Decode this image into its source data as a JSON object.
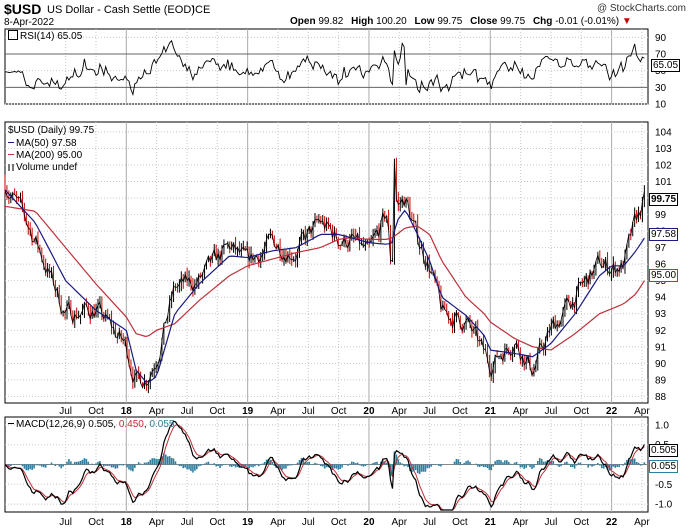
{
  "header": {
    "symbol": "$USD",
    "name": "US Dollar - Cash Settle (EOD)",
    "exchange": "ICE",
    "copyright": "@ StockCharts.com",
    "date": "8-Apr-2022",
    "open_label": "Open",
    "open": "99.82",
    "high_label": "High",
    "high": "100.20",
    "low_label": "Low",
    "low": "99.75",
    "close_label": "Close",
    "close": "99.75",
    "chg_label": "Chg",
    "chg": "-0.01 (-0.01%)",
    "chg_arrow": "▼"
  },
  "rsi_panel": {
    "title": "RSI(14) 65.05",
    "current": "65.05"
  },
  "price_panel": {
    "title": "$USD (Daily) 99.75",
    "ma50_label": "MA(50) 97.58",
    "ma200_label": "MA(200) 95.00",
    "volume_label": "Volume undef",
    "last_price": "99.75",
    "ma50_value": "97.58",
    "ma200_value": "95.00"
  },
  "macd_panel": {
    "title_prefix": "MACD(12,26,9)",
    "macd": "0.505",
    "signal": "0.450",
    "hist": "0.055"
  },
  "colors": {
    "price": "#000000",
    "bar_red": "#cc0000",
    "ma50": "#1a1a80",
    "ma200": "#c0303a",
    "hist": "#2e7ea0",
    "macd_signal": "#c0303a",
    "grid": "#c8c8c8"
  },
  "chart_data": [
    {
      "type": "line",
      "title": "RSI(14) 65.05",
      "ylim": [
        10,
        100
      ],
      "yticks": [
        90,
        70,
        50,
        30,
        10
      ],
      "reference_lines": [
        70,
        30
      ],
      "series": [
        {
          "name": "RSI(14)",
          "last": 65.05
        }
      ]
    },
    {
      "type": "line",
      "title": "$USD (Daily) 99.75",
      "ylabel": "",
      "ylim": [
        87.6,
        104.6
      ],
      "yticks": [
        104,
        103,
        102,
        101,
        100,
        99,
        98,
        97,
        96,
        95,
        94,
        93,
        92,
        91,
        90,
        89,
        88
      ],
      "x_tick_labels": [
        "Jul",
        "Oct",
        "18",
        "Apr",
        "Jul",
        "Oct",
        "19",
        "Apr",
        "Jul",
        "Oct",
        "20",
        "Apr",
        "Jul",
        "Oct",
        "21",
        "Apr",
        "Jul",
        "Oct",
        "22",
        "Apr"
      ],
      "x_tick_years": [
        "18",
        "19",
        "20",
        "21",
        "22"
      ],
      "x": [
        2017.0,
        2017.25,
        2017.5,
        2017.75,
        2018.0,
        2018.08,
        2018.17,
        2018.25,
        2018.4,
        2018.6,
        2018.85,
        2019.0,
        2019.2,
        2019.4,
        2019.6,
        2019.75,
        2019.85,
        2020.0,
        2020.15,
        2020.19,
        2020.21,
        2020.23,
        2020.3,
        2020.4,
        2020.5,
        2020.6,
        2020.8,
        2020.95,
        2021.0,
        2021.2,
        2021.35,
        2021.5,
        2021.7,
        2021.9,
        2022.0,
        2022.1,
        2022.2,
        2022.27
      ],
      "series": [
        {
          "name": "$USD close",
          "values": [
            101.0,
            97.5,
            93.0,
            93.3,
            91.0,
            89.0,
            89.2,
            90.5,
            94.5,
            95.0,
            97.0,
            96.0,
            97.3,
            96.8,
            98.5,
            97.5,
            97.5,
            96.5,
            99.0,
            95.0,
            102.5,
            99.5,
            100.0,
            97.5,
            96.0,
            93.0,
            92.5,
            90.5,
            90.0,
            91.5,
            89.6,
            92.0,
            94.0,
            96.0,
            95.8,
            96.0,
            98.5,
            99.75
          ]
        },
        {
          "name": "MA(50)",
          "last": 97.58,
          "values": [
            100.5,
            98.5,
            95.0,
            93.2,
            92.0,
            89.6,
            88.8,
            89.2,
            93.0,
            94.8,
            96.5,
            96.4,
            96.8,
            97.0,
            97.8,
            97.8,
            97.6,
            97.3,
            97.2,
            97.3,
            98.0,
            98.6,
            99.3,
            97.8,
            96.2,
            94.0,
            92.9,
            91.7,
            90.8,
            90.6,
            90.4,
            91.2,
            93.0,
            95.3,
            95.9,
            95.9,
            96.8,
            97.58
          ]
        },
        {
          "name": "MA(200)",
          "last": 95.0,
          "values": [
            99.5,
            99.2,
            97.0,
            94.8,
            92.8,
            91.8,
            91.6,
            92.0,
            92.4,
            93.8,
            95.3,
            95.9,
            96.3,
            96.7,
            97.0,
            97.5,
            97.6,
            97.5,
            97.5,
            97.6,
            97.7,
            97.8,
            98.2,
            98.3,
            97.8,
            96.2,
            94.0,
            93.0,
            92.5,
            91.5,
            91.0,
            90.8,
            91.8,
            93.0,
            93.3,
            93.6,
            94.2,
            95.0
          ]
        }
      ]
    },
    {
      "type": "line",
      "title": "MACD(12,26,9) 0.505, 0.450, 0.055",
      "ylim": [
        -1.2,
        1.2
      ],
      "yticks": [
        1.0,
        0.5,
        -0.5,
        -1.0
      ],
      "series": [
        {
          "name": "MACD",
          "last": 0.505
        },
        {
          "name": "Signal",
          "last": 0.45
        },
        {
          "name": "Histogram",
          "last": 0.055
        }
      ]
    }
  ]
}
